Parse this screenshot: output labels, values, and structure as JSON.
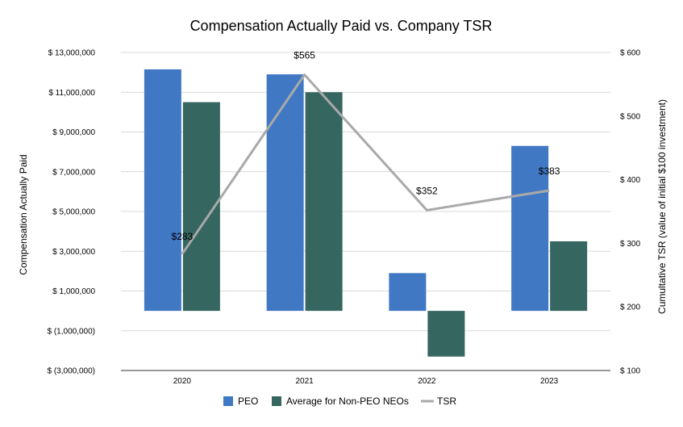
{
  "chart_data": {
    "type": "bar",
    "title": "Compensation Actually Paid vs. Company TSR",
    "categories": [
      "2020",
      "2021",
      "2022",
      "2023"
    ],
    "ylabel": "Compensation Actually Paid",
    "y2label": "Cumultative TSR (value of initial $100 investment)",
    "ylim": [
      -3000000,
      13000000
    ],
    "y2lim": [
      100,
      600
    ],
    "yticks": [
      {
        "value": 13000000,
        "label": "$ 13,000,000"
      },
      {
        "value": 11000000,
        "label": "$ 11,000,000"
      },
      {
        "value": 9000000,
        "label": "$ 9,000,000"
      },
      {
        "value": 7000000,
        "label": "$ 7,000,000"
      },
      {
        "value": 5000000,
        "label": "$ 5,000,000"
      },
      {
        "value": 3000000,
        "label": "$ 3,000,000"
      },
      {
        "value": 1000000,
        "label": "$ 1,000,000"
      },
      {
        "value": -1000000,
        "label": "$ (1,000,000)"
      },
      {
        "value": -3000000,
        "label": "$ (3,000,000)"
      }
    ],
    "y2ticks": [
      {
        "value": 600,
        "label": "$ 600"
      },
      {
        "value": 500,
        "label": "$ 500"
      },
      {
        "value": 400,
        "label": "$ 400"
      },
      {
        "value": 300,
        "label": "$ 300"
      },
      {
        "value": 200,
        "label": "$ 200"
      },
      {
        "value": 100,
        "label": "$ 100"
      }
    ],
    "series": [
      {
        "name": "PEO",
        "kind": "bar",
        "axis": "left",
        "color": "#4178c4",
        "values": [
          12150000,
          11900000,
          1900000,
          8300000
        ]
      },
      {
        "name": "Average for Non-PEO NEOs",
        "kind": "bar",
        "axis": "left",
        "color": "#35665f",
        "values": [
          10500000,
          11000000,
          -2300000,
          3500000
        ]
      },
      {
        "name": "TSR",
        "kind": "line",
        "axis": "right",
        "color": "#a9a9a9",
        "values": [
          283,
          565,
          352,
          383
        ],
        "labels": [
          "$283",
          "$565",
          "$352",
          "$383"
        ]
      }
    ],
    "grid": true,
    "legend": "bottom-center"
  }
}
